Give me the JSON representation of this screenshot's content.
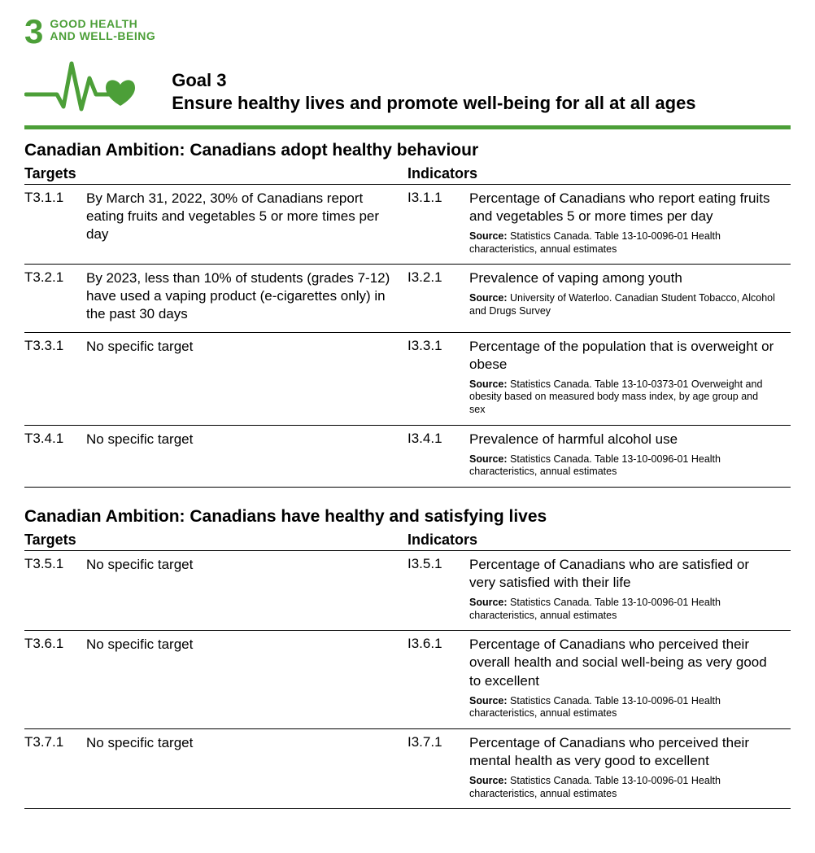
{
  "colors": {
    "green": "#4c9f38",
    "text": "#000000",
    "rule": "#000000",
    "bg": "#ffffff"
  },
  "sdg": {
    "number": "3",
    "label_line1": "GOOD HEALTH",
    "label_line2": "AND WELL-BEING"
  },
  "goal": {
    "title": "Goal 3",
    "subtitle": "Ensure healthy lives and promote well-being for all at all ages"
  },
  "headers": {
    "targets": "Targets",
    "indicators": "Indicators"
  },
  "source_label": "Source:",
  "sections": [
    {
      "ambition": "Canadian Ambition: Canadians adopt healthy behaviour",
      "rows": [
        {
          "t_code": "T3.1.1",
          "t_text": "By March 31, 2022, 30% of Canadians report eating fruits and vegetables 5 or more times per day",
          "i_code": "I3.1.1",
          "i_text": "Percentage of Canadians who report eating fruits and vegetables 5 or more times per day",
          "i_source": "Statistics Canada. Table 13-10-0096-01 Health characteristics, annual estimates"
        },
        {
          "t_code": "T3.2.1",
          "t_text": "By 2023, less than 10% of students (grades 7-12) have used a vaping product (e-cigarettes only) in the past 30 days",
          "i_code": "I3.2.1",
          "i_text": "Prevalence of vaping among youth",
          "i_source": "University of Waterloo. Canadian Student Tobacco, Alcohol and Drugs Survey"
        },
        {
          "t_code": "T3.3.1",
          "t_text": "No specific target",
          "i_code": "I3.3.1",
          "i_text": "Percentage of the population that is overweight or obese",
          "i_source": "Statistics Canada. Table 13-10-0373-01 Overweight and obesity based on measured body mass index, by age group and sex"
        },
        {
          "t_code": "T3.4.1",
          "t_text": "No specific target",
          "i_code": "I3.4.1",
          "i_text": "Prevalence of harmful alcohol use",
          "i_source": "Statistics Canada. Table 13-10-0096-01 Health characteristics, annual estimates"
        }
      ]
    },
    {
      "ambition": "Canadian Ambition: Canadians have healthy and satisfying lives",
      "rows": [
        {
          "t_code": "T3.5.1",
          "t_text": "No specific target",
          "i_code": "I3.5.1",
          "i_text": "Percentage of Canadians who are satisfied or very satisfied with their life",
          "i_source": "Statistics Canada. Table 13-10-0096-01 Health characteristics, annual estimates"
        },
        {
          "t_code": "T3.6.1",
          "t_text": "No specific target",
          "i_code": "I3.6.1",
          "i_text": "Percentage of Canadians who perceived their overall health and social well-being as very good to excellent",
          "i_source": "Statistics Canada. Table 13-10-0096-01 Health characteristics, annual estimates"
        },
        {
          "t_code": "T3.7.1",
          "t_text": "No specific target",
          "i_code": "I3.7.1",
          "i_text": "Percentage of Canadians who perceived their mental health as very good to excellent",
          "i_source": "Statistics Canada. Table 13-10-0096-01 Health characteristics, annual estimates"
        }
      ]
    }
  ]
}
